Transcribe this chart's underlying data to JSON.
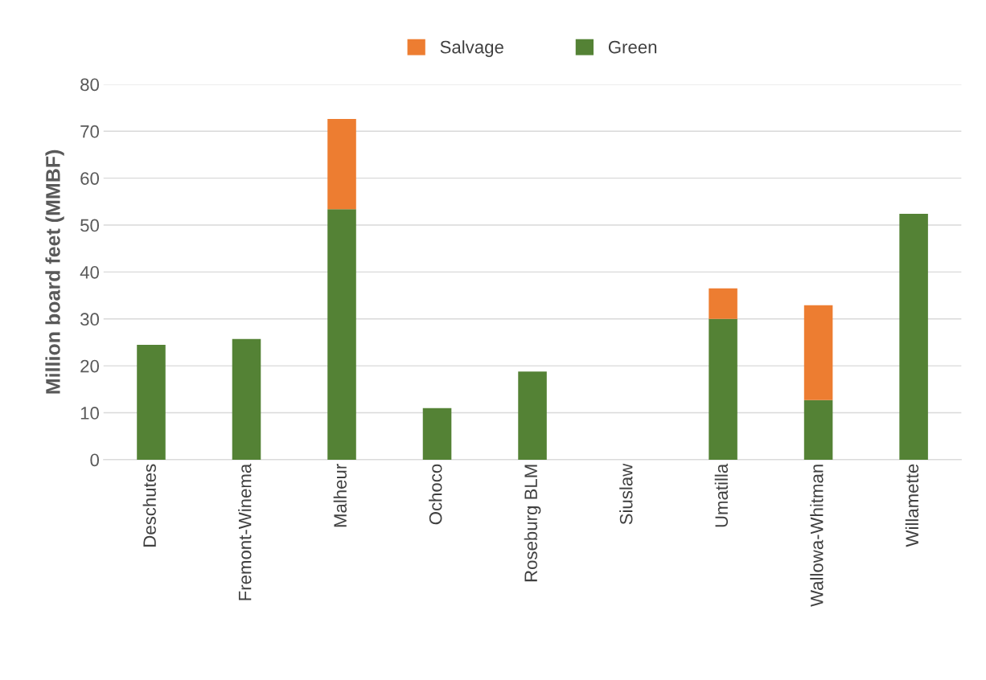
{
  "chart_data": {
    "type": "bar",
    "stacked": true,
    "ylabel": "Million board feet (MMBF)",
    "categories": [
      "Deschutes",
      "Fremont-Winema",
      "Malheur",
      "Ochoco",
      "Roseburg BLM",
      "Siuslaw",
      "Umatilla",
      "Wallowa-Whitman",
      "Willamette"
    ],
    "series": [
      {
        "name": "Green",
        "color": "#548235",
        "values": [
          24.5,
          25.7,
          53.4,
          11.0,
          18.8,
          0,
          30.0,
          12.7,
          52.4
        ]
      },
      {
        "name": "Salvage",
        "color": "#ed7d31",
        "values": [
          0,
          0,
          19.2,
          0,
          0,
          0,
          6.5,
          20.2,
          0
        ]
      }
    ],
    "ylim": [
      0,
      80
    ],
    "yticks": [
      0,
      10,
      20,
      30,
      40,
      50,
      60,
      70,
      80
    ],
    "grid": "y",
    "legend": "top"
  }
}
